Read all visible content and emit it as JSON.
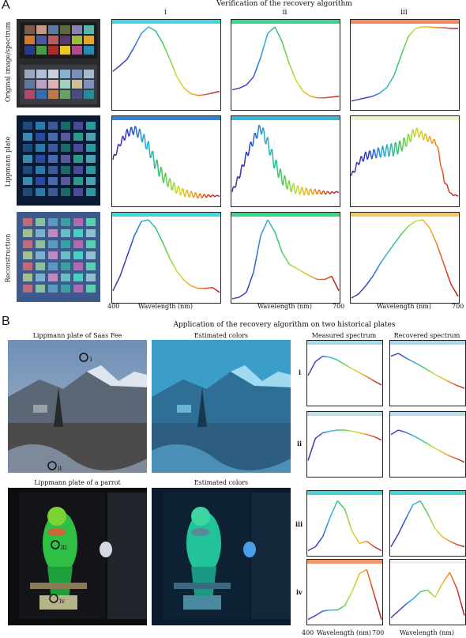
{
  "panel_a": {
    "letter": "A",
    "title": "Verification of the recovery algorithm",
    "columns": [
      "i",
      "ii",
      "iii"
    ],
    "row_labels": [
      "Original image/spectrum",
      "Lippmann plate",
      "Reconstruction"
    ],
    "x_label": "Wavelength (nm)",
    "x_ticks": [
      "400",
      "700"
    ],
    "bar_colors": [
      [
        "#46d6dd",
        "#36d889",
        "#f08b5c"
      ],
      [
        "#2f86d2",
        "#36b9d8",
        "#eef2c8"
      ],
      [
        "#46d6dd",
        "#36d889",
        "#f4c95c"
      ]
    ],
    "chart_labels": [
      "i",
      "ii",
      "iii"
    ]
  },
  "panel_b": {
    "letter": "B",
    "title": "Application of the recovery algorithm on two historical plates",
    "plate1_title": "Lippmann plate of Saas Fee",
    "plate1_est": "Estimated colors",
    "plate2_title": "Lippmann plate of a parrot",
    "plate2_est": "Estimated colors",
    "measured_title": "Measured spectrum",
    "recovered_title": "Recovered spectrum",
    "row_labels": [
      "i",
      "ii",
      "iii",
      "iv"
    ],
    "x_label": "Wavelength (nm)",
    "x_ticks": [
      "400",
      "700"
    ],
    "bar_colors": [
      [
        "#9fdbe8",
        "#a8d8ee"
      ],
      [
        "#b9e0ee",
        "#b5dff0"
      ],
      [
        "#4ad2d4",
        "#4ad2d4"
      ],
      [
        "#f0946a",
        "#f0f0f0"
      ]
    ],
    "photo_markers": [
      "i",
      "ii",
      "iii",
      "iv"
    ]
  },
  "chart_data": [
    {
      "type": "line",
      "title": "Verification of the recovery algorithm",
      "xlabel": "Wavelength (nm)",
      "xlim": [
        400,
        700
      ],
      "description_rows": [
        "Original image/spectrum",
        "Lippmann plate",
        "Reconstruction"
      ],
      "columns": [
        "i",
        "ii",
        "iii"
      ],
      "panels": [
        {
          "row": "Original image/spectrum",
          "col": "i",
          "x": [
            400,
            420,
            440,
            460,
            480,
            500,
            520,
            540,
            560,
            580,
            600,
            620,
            640,
            660,
            680,
            700
          ],
          "y": [
            0.45,
            0.52,
            0.6,
            0.75,
            0.92,
            1.0,
            0.95,
            0.8,
            0.6,
            0.38,
            0.24,
            0.17,
            0.15,
            0.16,
            0.18,
            0.2
          ]
        },
        {
          "row": "Original image/spectrum",
          "col": "ii",
          "x": [
            400,
            420,
            440,
            460,
            480,
            500,
            520,
            540,
            560,
            580,
            600,
            620,
            640,
            660,
            680,
            700
          ],
          "y": [
            0.22,
            0.24,
            0.28,
            0.38,
            0.62,
            0.92,
            1.0,
            0.82,
            0.55,
            0.33,
            0.2,
            0.14,
            0.12,
            0.12,
            0.13,
            0.14
          ]
        },
        {
          "row": "Original image/spectrum",
          "col": "iii",
          "x": [
            400,
            420,
            440,
            460,
            480,
            500,
            520,
            540,
            560,
            580,
            600,
            620,
            640,
            660,
            680,
            700
          ],
          "y": [
            0.08,
            0.1,
            0.12,
            0.14,
            0.18,
            0.25,
            0.4,
            0.65,
            0.88,
            0.98,
            1.0,
            1.0,
            0.99,
            0.99,
            0.98,
            0.98
          ]
        },
        {
          "row": "Lippmann plate",
          "col": "i",
          "x": [
            400,
            420,
            440,
            460,
            480,
            500,
            520,
            540,
            560,
            580,
            600,
            620,
            640,
            660,
            680,
            700
          ],
          "y": [
            0.55,
            0.75,
            0.88,
            0.92,
            0.85,
            0.7,
            0.5,
            0.35,
            0.25,
            0.18,
            0.14,
            0.12,
            0.1,
            0.1,
            0.1,
            0.1
          ]
        },
        {
          "row": "Lippmann plate",
          "col": "ii",
          "x": [
            400,
            420,
            440,
            460,
            480,
            500,
            520,
            540,
            560,
            580,
            600,
            620,
            640,
            660,
            680,
            700
          ],
          "y": [
            0.15,
            0.35,
            0.6,
            0.8,
            0.95,
            0.75,
            0.5,
            0.32,
            0.22,
            0.18,
            0.16,
            0.15,
            0.15,
            0.14,
            0.14,
            0.15
          ]
        },
        {
          "row": "Lippmann plate",
          "col": "iii",
          "x": [
            400,
            420,
            440,
            460,
            480,
            500,
            520,
            540,
            560,
            580,
            600,
            620,
            640,
            660,
            680,
            700
          ],
          "y": [
            0.35,
            0.52,
            0.6,
            0.62,
            0.64,
            0.66,
            0.68,
            0.72,
            0.8,
            0.9,
            0.85,
            0.8,
            0.75,
            0.3,
            0.12,
            0.1
          ]
        },
        {
          "row": "Reconstruction",
          "col": "i",
          "x": [
            400,
            420,
            440,
            460,
            480,
            500,
            520,
            540,
            560,
            580,
            600,
            620,
            640,
            660,
            680,
            700
          ],
          "y": [
            0.12,
            0.3,
            0.55,
            0.8,
            0.98,
            1.0,
            0.9,
            0.72,
            0.52,
            0.36,
            0.25,
            0.18,
            0.15,
            0.15,
            0.16,
            0.1
          ]
        },
        {
          "row": "Reconstruction",
          "col": "ii",
          "x": [
            400,
            420,
            440,
            460,
            480,
            500,
            520,
            540,
            560,
            580,
            600,
            620,
            640,
            660,
            680,
            700
          ],
          "y": [
            0.02,
            0.04,
            0.1,
            0.35,
            0.8,
            1.0,
            0.85,
            0.6,
            0.45,
            0.4,
            0.35,
            0.3,
            0.26,
            0.26,
            0.3,
            0.12
          ]
        },
        {
          "row": "Reconstruction",
          "col": "iii",
          "x": [
            400,
            420,
            440,
            460,
            480,
            500,
            520,
            540,
            560,
            580,
            600,
            620,
            640,
            660,
            680,
            700
          ],
          "y": [
            0.03,
            0.08,
            0.18,
            0.3,
            0.45,
            0.58,
            0.7,
            0.82,
            0.92,
            0.98,
            1.0,
            0.9,
            0.7,
            0.45,
            0.2,
            0.05
          ]
        }
      ]
    },
    {
      "type": "line",
      "title": "Application of the recovery algorithm on two historical plates",
      "xlabel": "Wavelength (nm)",
      "xlim": [
        400,
        700
      ],
      "columns": [
        "Measured spectrum",
        "Recovered spectrum"
      ],
      "rows": [
        "i",
        "ii",
        "iii",
        "iv"
      ],
      "panels": [
        {
          "row": "i",
          "col": "Measured spectrum",
          "x": [
            400,
            430,
            460,
            490,
            520,
            550,
            580,
            610,
            640,
            670,
            700
          ],
          "y": [
            0.5,
            0.75,
            0.85,
            0.83,
            0.78,
            0.7,
            0.62,
            0.55,
            0.48,
            0.4,
            0.33
          ]
        },
        {
          "row": "i",
          "col": "Recovered spectrum",
          "x": [
            400,
            430,
            460,
            490,
            520,
            550,
            580,
            610,
            640,
            670,
            700
          ],
          "y": [
            0.85,
            0.9,
            0.82,
            0.75,
            0.68,
            0.6,
            0.52,
            0.45,
            0.38,
            0.32,
            0.27
          ]
        },
        {
          "row": "ii",
          "col": "Measured spectrum",
          "x": [
            400,
            430,
            460,
            490,
            520,
            550,
            580,
            610,
            640,
            670,
            700
          ],
          "y": [
            0.25,
            0.65,
            0.75,
            0.78,
            0.8,
            0.8,
            0.78,
            0.75,
            0.72,
            0.68,
            0.62
          ]
        },
        {
          "row": "ii",
          "col": "Recovered spectrum",
          "x": [
            400,
            430,
            460,
            490,
            520,
            550,
            580,
            610,
            640,
            670,
            700
          ],
          "y": [
            0.72,
            0.8,
            0.76,
            0.7,
            0.63,
            0.55,
            0.47,
            0.4,
            0.33,
            0.28,
            0.22
          ]
        },
        {
          "row": "iii",
          "col": "Measured spectrum",
          "x": [
            400,
            430,
            460,
            490,
            520,
            550,
            580,
            610,
            640,
            670,
            700
          ],
          "y": [
            0.05,
            0.12,
            0.3,
            0.65,
            0.95,
            0.8,
            0.4,
            0.18,
            0.22,
            0.12,
            0.05
          ]
        },
        {
          "row": "iii",
          "col": "Recovered spectrum",
          "x": [
            400,
            430,
            460,
            490,
            520,
            550,
            580,
            610,
            640,
            670,
            700
          ],
          "y": [
            0.12,
            0.35,
            0.62,
            0.88,
            0.95,
            0.72,
            0.45,
            0.3,
            0.22,
            0.16,
            0.12
          ]
        },
        {
          "row": "iv",
          "col": "Measured spectrum",
          "x": [
            400,
            430,
            460,
            490,
            520,
            550,
            580,
            610,
            640,
            670,
            700
          ],
          "y": [
            0.05,
            0.12,
            0.2,
            0.22,
            0.22,
            0.3,
            0.55,
            0.88,
            0.95,
            0.5,
            0.05
          ]
        },
        {
          "row": "iv",
          "col": "Recovered spectrum",
          "x": [
            400,
            430,
            460,
            490,
            520,
            550,
            580,
            610,
            640,
            670,
            700
          ],
          "y": [
            0.08,
            0.2,
            0.32,
            0.42,
            0.55,
            0.58,
            0.45,
            0.7,
            0.9,
            0.6,
            0.12
          ]
        }
      ]
    }
  ]
}
